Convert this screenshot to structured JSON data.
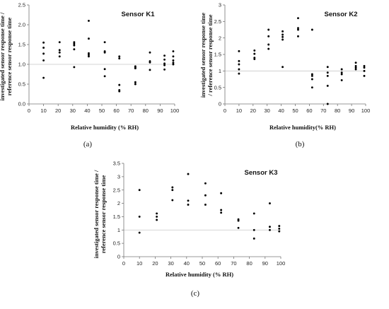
{
  "chart_data": [
    {
      "type": "scatter",
      "title": "Sensor K1",
      "panel_label": "(a)",
      "xlabel": "Relative humidity (% RH)",
      "ylabel_lines": [
        "investigated sensor response time /",
        "reference sensor response time"
      ],
      "xlim": [
        0,
        100
      ],
      "ylim": [
        0,
        2.5
      ],
      "x_ticks": [
        "0",
        "10",
        "20",
        "30",
        "40",
        "50",
        "60",
        "70",
        "80",
        "90",
        "100"
      ],
      "y_ticks": [
        "0.0",
        "0.5",
        "1.0",
        "1.5",
        "2.0",
        "2.5"
      ],
      "reference_y": 1.0,
      "points": [
        [
          10,
          1.55
        ],
        [
          10,
          1.42
        ],
        [
          10,
          1.27
        ],
        [
          10,
          1.1
        ],
        [
          10,
          0.66
        ],
        [
          21,
          1.56
        ],
        [
          21,
          1.36
        ],
        [
          21,
          1.3
        ],
        [
          21,
          1.2
        ],
        [
          31,
          1.56
        ],
        [
          31,
          1.52
        ],
        [
          31,
          1.48
        ],
        [
          31,
          1.38
        ],
        [
          31,
          0.93
        ],
        [
          41,
          2.1
        ],
        [
          41,
          1.65
        ],
        [
          41,
          1.28
        ],
        [
          41,
          1.24
        ],
        [
          41,
          1.2
        ],
        [
          52,
          1.56
        ],
        [
          52,
          1.33
        ],
        [
          52,
          1.3
        ],
        [
          52,
          0.88
        ],
        [
          52,
          0.7
        ],
        [
          62,
          1.2
        ],
        [
          62,
          1.15
        ],
        [
          62,
          0.48
        ],
        [
          62,
          0.35
        ],
        [
          62,
          0.32
        ],
        [
          73,
          0.95
        ],
        [
          73,
          0.92
        ],
        [
          73,
          0.9
        ],
        [
          73,
          0.55
        ],
        [
          73,
          0.5
        ],
        [
          83,
          1.3
        ],
        [
          83,
          1.08
        ],
        [
          83,
          1.05
        ],
        [
          83,
          0.86
        ],
        [
          93,
          1.22
        ],
        [
          93,
          1.12
        ],
        [
          93,
          1.02
        ],
        [
          93,
          0.98
        ],
        [
          93,
          0.87
        ],
        [
          99,
          1.33
        ],
        [
          99,
          1.2
        ],
        [
          99,
          1.1
        ],
        [
          99,
          1.04
        ],
        [
          99,
          1.0
        ]
      ]
    },
    {
      "type": "scatter",
      "title": "Sensor K2",
      "panel_label": "(b)",
      "xlabel": "Relative humidity(% RH)",
      "ylabel_lines": [
        "investigated sensor response time",
        "/ reference sensor response time"
      ],
      "xlim": [
        0,
        100
      ],
      "ylim": [
        0,
        3
      ],
      "x_ticks": [
        "0",
        "10",
        "20",
        "30",
        "40",
        "50",
        "60",
        "70",
        "80",
        "90",
        "100"
      ],
      "y_ticks": [
        "0",
        "0.5",
        "1",
        "1.5",
        "2",
        "2.5",
        "3"
      ],
      "reference_y": 1.0,
      "points": [
        [
          10,
          1.6
        ],
        [
          10,
          1.3
        ],
        [
          10,
          1.2
        ],
        [
          10,
          1.05
        ],
        [
          10,
          0.92
        ],
        [
          21,
          1.62
        ],
        [
          21,
          1.52
        ],
        [
          21,
          1.4
        ],
        [
          21,
          1.36
        ],
        [
          31,
          2.25
        ],
        [
          31,
          2.05
        ],
        [
          31,
          1.8
        ],
        [
          31,
          1.67
        ],
        [
          41,
          2.2
        ],
        [
          41,
          2.1
        ],
        [
          41,
          2.03
        ],
        [
          41,
          1.95
        ],
        [
          41,
          1.12
        ],
        [
          52,
          2.6
        ],
        [
          52,
          2.3
        ],
        [
          52,
          2.25
        ],
        [
          52,
          2.05
        ],
        [
          62,
          2.25
        ],
        [
          62,
          0.9
        ],
        [
          62,
          0.85
        ],
        [
          62,
          0.75
        ],
        [
          62,
          0.5
        ],
        [
          73,
          1.12
        ],
        [
          73,
          0.95
        ],
        [
          73,
          0.85
        ],
        [
          73,
          0.55
        ],
        [
          73,
          0.0
        ],
        [
          83,
          1.05
        ],
        [
          83,
          0.95
        ],
        [
          83,
          0.9
        ],
        [
          83,
          0.72
        ],
        [
          93,
          1.25
        ],
        [
          93,
          1.15
        ],
        [
          93,
          1.1
        ],
        [
          93,
          1.05
        ],
        [
          99,
          1.15
        ],
        [
          99,
          1.1
        ],
        [
          99,
          1.0
        ],
        [
          99,
          0.85
        ]
      ]
    },
    {
      "type": "scatter",
      "title": "Sensor K3",
      "panel_label": "(c)",
      "xlabel": "Relative humidity (% RH)",
      "ylabel_lines": [
        "investigated sensor response time /",
        "reference sensor response time"
      ],
      "xlim": [
        0,
        100
      ],
      "ylim": [
        0,
        3.5
      ],
      "x_ticks": [
        "0",
        "10",
        "20",
        "30",
        "40",
        "50",
        "60",
        "70",
        "80",
        "90",
        "100"
      ],
      "y_ticks": [
        "0",
        "0.5",
        "1",
        "1.5",
        "2",
        "2.5",
        "3",
        "3.5"
      ],
      "reference_y": 1.0,
      "points": [
        [
          10,
          2.5
        ],
        [
          10,
          1.5
        ],
        [
          10,
          0.9
        ],
        [
          21,
          1.62
        ],
        [
          21,
          1.5
        ],
        [
          21,
          1.38
        ],
        [
          31,
          2.6
        ],
        [
          31,
          2.5
        ],
        [
          31,
          2.12
        ],
        [
          41,
          3.1
        ],
        [
          41,
          2.1
        ],
        [
          41,
          1.95
        ],
        [
          52,
          2.75
        ],
        [
          52,
          2.3
        ],
        [
          52,
          1.95
        ],
        [
          62,
          2.38
        ],
        [
          62,
          1.75
        ],
        [
          62,
          1.65
        ],
        [
          73,
          1.4
        ],
        [
          73,
          1.35
        ],
        [
          73,
          1.08
        ],
        [
          83,
          1.62
        ],
        [
          83,
          1.0
        ],
        [
          83,
          0.68
        ],
        [
          93,
          2.0
        ],
        [
          93,
          1.12
        ],
        [
          93,
          1.0
        ],
        [
          99,
          1.15
        ],
        [
          99,
          1.05
        ],
        [
          99,
          0.95
        ]
      ]
    }
  ]
}
